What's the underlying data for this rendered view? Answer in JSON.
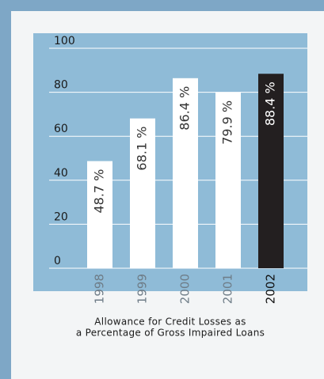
{
  "chart_data": {
    "type": "bar",
    "title": [
      "Allowance for Credit Losses as",
      "a Percentage of Gross Impaired Loans"
    ],
    "categories": [
      "1998",
      "1999",
      "2000",
      "2001",
      "2002"
    ],
    "values": [
      48.7,
      68.1,
      86.4,
      79.9,
      88.4
    ],
    "value_labels": [
      "48.7 %",
      "68.1 %",
      "86.4 %",
      "79.9 %",
      "88.4 %"
    ],
    "colors": [
      "#ffffff",
      "#ffffff",
      "#ffffff",
      "#ffffff",
      "#231f20"
    ],
    "ylim": [
      0,
      100
    ],
    "yticks": [
      0,
      20,
      40,
      60,
      80,
      100
    ],
    "grid": true
  }
}
